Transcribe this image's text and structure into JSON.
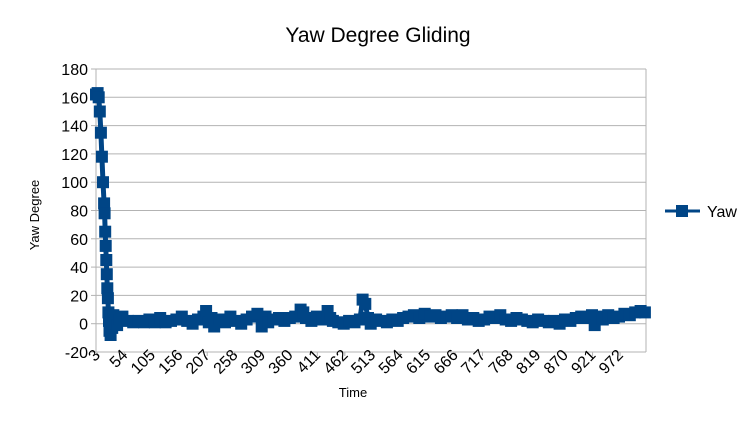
{
  "chart_data": {
    "type": "line",
    "title": "Yaw Degree Gliding",
    "xlabel": "Time",
    "ylabel": "Yaw Degree",
    "ylim": [
      -20,
      180
    ],
    "y_ticks": [
      -20,
      0,
      20,
      40,
      60,
      80,
      100,
      120,
      140,
      160,
      180
    ],
    "xlim": [
      1,
      1020
    ],
    "x_ticks": [
      3,
      54,
      105,
      156,
      207,
      258,
      309,
      360,
      411,
      462,
      513,
      564,
      615,
      666,
      717,
      768,
      819,
      870,
      921,
      972
    ],
    "grid": "horizontal",
    "legend_position": "right",
    "marker": "square",
    "series": [
      {
        "name": "Yaw",
        "color": "#004586",
        "points": [
          [
            1,
            162
          ],
          [
            4,
            163
          ],
          [
            6,
            160
          ],
          [
            8,
            150
          ],
          [
            10,
            135
          ],
          [
            12,
            118
          ],
          [
            14,
            100
          ],
          [
            16,
            85
          ],
          [
            17,
            78
          ],
          [
            18,
            65
          ],
          [
            19,
            55
          ],
          [
            20,
            45
          ],
          [
            21,
            35
          ],
          [
            22,
            25
          ],
          [
            23,
            18
          ],
          [
            24,
            8
          ],
          [
            25,
            2
          ],
          [
            26,
            -5
          ],
          [
            27,
            5
          ],
          [
            28,
            -8
          ],
          [
            29,
            3
          ],
          [
            31,
            -3
          ],
          [
            33,
            6
          ],
          [
            35,
            0
          ],
          [
            38,
            4
          ],
          [
            40,
            -1
          ],
          [
            45,
            3
          ],
          [
            50,
            5
          ],
          [
            60,
            2
          ],
          [
            70,
            1
          ],
          [
            80,
            2
          ],
          [
            90,
            1
          ],
          [
            100,
            3
          ],
          [
            110,
            1
          ],
          [
            120,
            4
          ],
          [
            130,
            1
          ],
          [
            140,
            2
          ],
          [
            150,
            3
          ],
          [
            160,
            5
          ],
          [
            170,
            2
          ],
          [
            180,
            0
          ],
          [
            190,
            3
          ],
          [
            200,
            5
          ],
          [
            205,
            9
          ],
          [
            210,
            1
          ],
          [
            215,
            4
          ],
          [
            220,
            -2
          ],
          [
            230,
            3
          ],
          [
            240,
            1
          ],
          [
            250,
            5
          ],
          [
            260,
            2
          ],
          [
            270,
            0
          ],
          [
            280,
            3
          ],
          [
            290,
            5
          ],
          [
            300,
            7
          ],
          [
            308,
            -2
          ],
          [
            315,
            5
          ],
          [
            320,
            1
          ],
          [
            330,
            3
          ],
          [
            340,
            4
          ],
          [
            350,
            2
          ],
          [
            360,
            4
          ],
          [
            370,
            5
          ],
          [
            380,
            10
          ],
          [
            385,
            8
          ],
          [
            390,
            4
          ],
          [
            400,
            2
          ],
          [
            410,
            5
          ],
          [
            420,
            3
          ],
          [
            430,
            9
          ],
          [
            435,
            4
          ],
          [
            440,
            2
          ],
          [
            450,
            1
          ],
          [
            460,
            0
          ],
          [
            470,
            2
          ],
          [
            480,
            1
          ],
          [
            490,
            3
          ],
          [
            495,
            17
          ],
          [
            500,
            14
          ],
          [
            505,
            4
          ],
          [
            510,
            0
          ],
          [
            520,
            3
          ],
          [
            530,
            2
          ],
          [
            540,
            1
          ],
          [
            550,
            3
          ],
          [
            560,
            2
          ],
          [
            570,
            4
          ],
          [
            580,
            5
          ],
          [
            590,
            6
          ],
          [
            600,
            4
          ],
          [
            610,
            7
          ],
          [
            620,
            5
          ],
          [
            630,
            6
          ],
          [
            640,
            4
          ],
          [
            650,
            5
          ],
          [
            660,
            6
          ],
          [
            670,
            4
          ],
          [
            680,
            6
          ],
          [
            690,
            3
          ],
          [
            700,
            4
          ],
          [
            710,
            2
          ],
          [
            720,
            3
          ],
          [
            730,
            5
          ],
          [
            740,
            4
          ],
          [
            750,
            6
          ],
          [
            760,
            3
          ],
          [
            770,
            2
          ],
          [
            780,
            4
          ],
          [
            790,
            3
          ],
          [
            800,
            2
          ],
          [
            810,
            1
          ],
          [
            820,
            3
          ],
          [
            830,
            2
          ],
          [
            840,
            1
          ],
          [
            850,
            2
          ],
          [
            860,
            0
          ],
          [
            870,
            3
          ],
          [
            880,
            2
          ],
          [
            890,
            4
          ],
          [
            900,
            5
          ],
          [
            910,
            4
          ],
          [
            920,
            6
          ],
          [
            925,
            -1
          ],
          [
            930,
            5
          ],
          [
            940,
            3
          ],
          [
            950,
            6
          ],
          [
            960,
            4
          ],
          [
            970,
            5
          ],
          [
            980,
            7
          ],
          [
            990,
            6
          ],
          [
            1000,
            8
          ],
          [
            1010,
            9
          ],
          [
            1018,
            8
          ]
        ]
      }
    ]
  }
}
